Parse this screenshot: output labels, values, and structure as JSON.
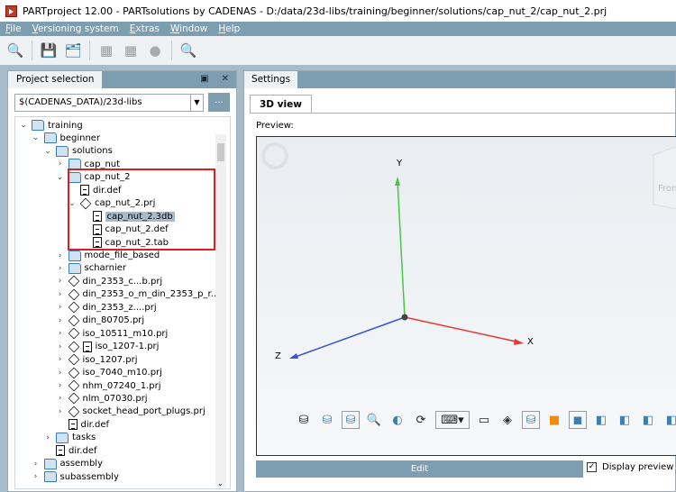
{
  "window": {
    "title": "PARTproject 12.00 - PARTsolutions by CADENAS - D:/data/23d-libs/training/beginner/solutions/cap_nut_2/cap_nut_2.prj"
  },
  "menu": [
    "File",
    "Versioning system",
    "Extras",
    "Window",
    "Help"
  ],
  "toolbar": [
    "search-text-icon",
    "save-icon",
    "save-all-icon",
    "import-icon",
    "export-icon",
    "globe-icon",
    "search-delete-icon"
  ],
  "project_panel": {
    "tab": "Project selection",
    "path": "$(CADENAS_DATA)/23d-libs",
    "browse": "...",
    "tree": [
      {
        "label": "training",
        "level": 0,
        "type": "folder",
        "expander": "v"
      },
      {
        "label": "beginner",
        "level": 1,
        "type": "folder",
        "expander": "v"
      },
      {
        "label": "solutions",
        "level": 2,
        "type": "folder",
        "expander": "v"
      },
      {
        "label": "cap_nut",
        "level": 3,
        "type": "folder",
        "expander": ">"
      },
      {
        "label": "cap_nut_2",
        "level": 3,
        "type": "folder",
        "expander": "v"
      },
      {
        "label": "dir.def",
        "level": 4,
        "type": "file",
        "expander": ""
      },
      {
        "label": "cap_nut_2.prj",
        "level": 4,
        "type": "project",
        "expander": "v"
      },
      {
        "label": "cap_nut_2.3db",
        "level": 5,
        "type": "file",
        "expander": "",
        "selected": true
      },
      {
        "label": "cap_nut_2.def",
        "level": 5,
        "type": "file",
        "expander": ""
      },
      {
        "label": "cap_nut_2.tab",
        "level": 5,
        "type": "file",
        "expander": ""
      },
      {
        "label": "mode_file_based",
        "level": 3,
        "type": "folder",
        "expander": ">"
      },
      {
        "label": "scharnier",
        "level": 3,
        "type": "folder",
        "expander": ">"
      },
      {
        "label": "din_2353_c...b.prj",
        "level": 3,
        "type": "project",
        "expander": ">"
      },
      {
        "label": "din_2353_o_m_din_2353_p_r...",
        "level": 3,
        "type": "project",
        "expander": ">"
      },
      {
        "label": "din_2353_z....prj",
        "level": 3,
        "type": "project",
        "expander": ">"
      },
      {
        "label": "din_80705.prj",
        "level": 3,
        "type": "project",
        "expander": ">"
      },
      {
        "label": "iso_10511_m10.prj",
        "level": 3,
        "type": "project",
        "expander": ">"
      },
      {
        "label": "iso_1207-1.prj",
        "level": 3,
        "type": "project-file",
        "expander": ">"
      },
      {
        "label": "iso_1207.prj",
        "level": 3,
        "type": "project",
        "expander": ">"
      },
      {
        "label": "iso_7040_m10.prj",
        "level": 3,
        "type": "project",
        "expander": ">"
      },
      {
        "label": "nhm_07240_1.prj",
        "level": 3,
        "type": "project",
        "expander": ">"
      },
      {
        "label": "nlm_07030.prj",
        "level": 3,
        "type": "project",
        "expander": ">"
      },
      {
        "label": "socket_head_port_plugs.prj",
        "level": 3,
        "type": "project",
        "expander": ">"
      },
      {
        "label": "dir.def",
        "level": 3,
        "type": "file",
        "expander": ""
      },
      {
        "label": "tasks",
        "level": 2,
        "type": "folder",
        "expander": ">"
      },
      {
        "label": "dir.def",
        "level": 2,
        "type": "file",
        "expander": ""
      },
      {
        "label": "assembly",
        "level": 1,
        "type": "folder",
        "expander": ">"
      },
      {
        "label": "subassembly",
        "level": 1,
        "type": "folder",
        "expander": ">"
      }
    ]
  },
  "settings_panel": {
    "tab": "Settings",
    "subtab": "3D view",
    "preview_label": "Preview:",
    "axes": {
      "x": "X",
      "y": "Y",
      "z": "Z"
    },
    "cube_face": "Front",
    "edit": "Edit",
    "display_preview": "Display preview",
    "display_preview_checked": true
  },
  "colors": {
    "accent": "#7d9db0",
    "highlight": "#e21b1b",
    "x_axis": "#e53935",
    "y_axis": "#43c943",
    "z_axis": "#3f51d9"
  }
}
